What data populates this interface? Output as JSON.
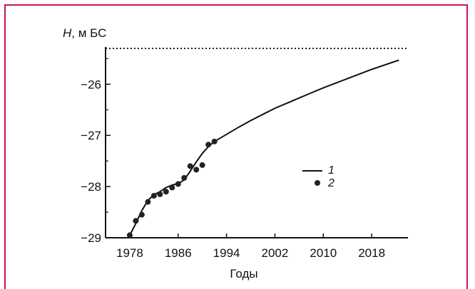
{
  "chart_data": {
    "type": "line",
    "title": "",
    "ylabel_var": "H",
    "ylabel_unit": ", м БС",
    "xlabel": "Годы",
    "xlim": [
      1974,
      2024
    ],
    "ylim": [
      -29,
      -25.3
    ],
    "x_ticks": [
      1978,
      1986,
      1994,
      2002,
      2010,
      2018
    ],
    "y_ticks": [
      -29,
      -28,
      -27,
      -26
    ],
    "y_tick_labels": [
      "−29",
      "−28",
      "−27",
      "−26"
    ],
    "reference_level": -25.3,
    "series": [
      {
        "name": "1",
        "kind": "line",
        "x": [
          1977.8,
          1979,
          1980,
          1981,
          1982,
          1983,
          1984,
          1985,
          1986,
          1987,
          1988,
          1989,
          1990,
          1991,
          1992,
          1994,
          1996,
          1998,
          2000,
          2002,
          2004,
          2006,
          2008,
          2010,
          2012,
          2014,
          2016,
          2018,
          2020,
          2022.5
        ],
        "y": [
          -29.0,
          -28.72,
          -28.47,
          -28.27,
          -28.16,
          -28.1,
          -28.02,
          -27.97,
          -27.94,
          -27.87,
          -27.7,
          -27.52,
          -27.35,
          -27.22,
          -27.12,
          -26.98,
          -26.84,
          -26.71,
          -26.59,
          -26.47,
          -26.37,
          -26.27,
          -26.17,
          -26.07,
          -25.98,
          -25.89,
          -25.8,
          -25.71,
          -25.63,
          -25.53
        ]
      },
      {
        "name": "2",
        "kind": "points",
        "x": [
          1978,
          1979,
          1980,
          1981,
          1982,
          1983,
          1984,
          1985,
          1986,
          1987,
          1988,
          1989,
          1990,
          1991,
          1992
        ],
        "y": [
          -28.95,
          -28.67,
          -28.55,
          -28.3,
          -28.18,
          -28.15,
          -28.1,
          -28.02,
          -27.95,
          -27.83,
          -27.6,
          -27.67,
          -27.58,
          -27.18,
          -27.12
        ]
      }
    ],
    "legend": [
      "1",
      "2"
    ],
    "colors": {
      "line": "#111111",
      "points": "#222222",
      "frame": "#c2185b"
    }
  }
}
